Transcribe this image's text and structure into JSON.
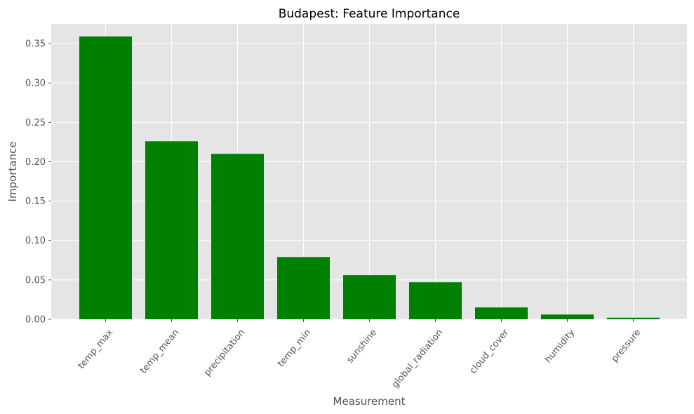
{
  "chart_data": {
    "type": "bar",
    "title": "Budapest: Feature Importance",
    "xlabel": "Measurement",
    "ylabel": "Importance",
    "categories": [
      "temp_max",
      "temp_mean",
      "precipitation",
      "temp_min",
      "sunshine",
      "global_radiation",
      "cloud_cover",
      "humidity",
      "pressure"
    ],
    "values": [
      0.359,
      0.226,
      0.21,
      0.079,
      0.056,
      0.047,
      0.015,
      0.006,
      0.002
    ],
    "ylim": [
      0,
      0.375
    ],
    "yticks": [
      "0.00",
      "0.05",
      "0.10",
      "0.15",
      "0.20",
      "0.25",
      "0.30",
      "0.35"
    ],
    "bar_color": "#008000",
    "background_color": "#e5e5e5",
    "grid": true,
    "xtick_rotation": 50
  }
}
